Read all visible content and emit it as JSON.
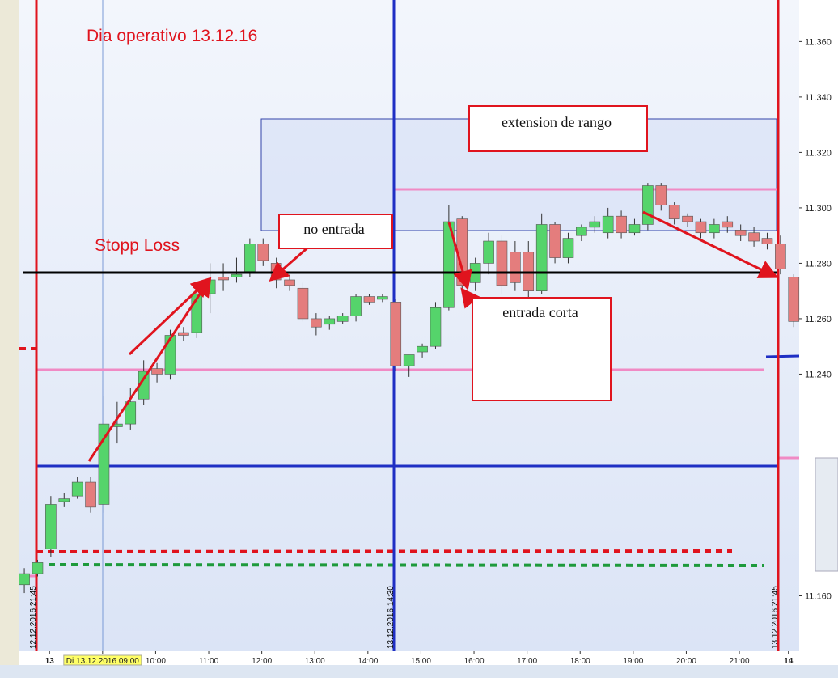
{
  "chart_data": {
    "type": "candlestick",
    "up_color": "#55d46b",
    "down_color": "#e47d7d",
    "categories": [
      null,
      null,
      null,
      null,
      null,
      null,
      null,
      null,
      null,
      null,
      null,
      null,
      null,
      null,
      null,
      null,
      null,
      null,
      null,
      null,
      null,
      null,
      null,
      null,
      null,
      null,
      null,
      null,
      null,
      null,
      null,
      null,
      null,
      null,
      null,
      null,
      null,
      null,
      null,
      null,
      null,
      null,
      null,
      null,
      null,
      null,
      null,
      null,
      null,
      null,
      null,
      null,
      null,
      null,
      null,
      null,
      null,
      null,
      null
    ],
    "open": [
      11.164,
      11.168,
      11.177,
      11.194,
      11.196,
      11.201,
      11.193,
      11.221,
      11.222,
      11.231,
      11.242,
      11.24,
      11.255,
      11.255,
      11.269,
      11.275,
      11.275,
      11.277,
      11.287,
      11.28,
      11.274,
      11.271,
      11.26,
      11.258,
      11.259,
      11.261,
      11.268,
      11.267,
      11.266,
      11.243,
      11.248,
      11.25,
      11.264,
      11.296,
      11.273,
      11.28,
      11.288,
      11.284,
      11.284,
      11.27,
      11.294,
      11.282,
      11.29,
      11.293,
      11.291,
      11.297,
      11.291,
      11.294,
      11.308,
      11.301,
      11.297,
      11.295,
      11.291,
      11.295,
      11.292,
      11.291,
      11.289,
      11.287,
      11.275
    ],
    "high": [
      11.17,
      11.173,
      11.196,
      11.197,
      11.203,
      11.203,
      11.232,
      11.23,
      11.235,
      11.245,
      11.244,
      11.256,
      11.257,
      11.272,
      11.28,
      11.28,
      11.282,
      11.289,
      11.289,
      11.282,
      11.276,
      11.273,
      11.262,
      11.261,
      11.262,
      11.269,
      11.269,
      11.269,
      11.267,
      11.247,
      11.251,
      11.266,
      11.301,
      11.297,
      11.282,
      11.291,
      11.29,
      11.288,
      11.288,
      11.298,
      11.295,
      11.291,
      11.294,
      11.297,
      11.3,
      11.299,
      11.296,
      11.309,
      11.309,
      11.302,
      11.298,
      11.296,
      11.296,
      11.297,
      11.294,
      11.293,
      11.291,
      11.29,
      11.276
    ],
    "low": [
      11.161,
      11.167,
      11.174,
      11.192,
      11.195,
      11.19,
      11.19,
      11.215,
      11.22,
      11.229,
      11.237,
      11.238,
      11.252,
      11.253,
      11.262,
      11.27,
      11.273,
      11.275,
      11.279,
      11.271,
      11.27,
      11.259,
      11.254,
      11.256,
      11.258,
      11.259,
      11.265,
      11.266,
      11.241,
      11.239,
      11.246,
      11.249,
      11.263,
      11.27,
      11.27,
      11.276,
      11.269,
      11.27,
      11.267,
      11.269,
      11.28,
      11.28,
      11.288,
      11.291,
      11.289,
      11.289,
      11.29,
      11.292,
      11.299,
      11.294,
      11.293,
      11.289,
      11.289,
      11.291,
      11.288,
      11.286,
      11.285,
      11.276,
      11.257
    ],
    "close": [
      11.168,
      11.172,
      11.193,
      11.195,
      11.201,
      11.192,
      11.222,
      11.222,
      11.23,
      11.241,
      11.24,
      11.254,
      11.254,
      11.269,
      11.274,
      11.274,
      11.276,
      11.287,
      11.281,
      11.274,
      11.272,
      11.26,
      11.257,
      11.26,
      11.261,
      11.268,
      11.266,
      11.268,
      11.243,
      11.247,
      11.25,
      11.264,
      11.295,
      11.272,
      11.28,
      11.288,
      11.272,
      11.273,
      11.27,
      11.294,
      11.282,
      11.289,
      11.293,
      11.295,
      11.297,
      11.291,
      11.294,
      11.308,
      11.301,
      11.296,
      11.295,
      11.291,
      11.294,
      11.293,
      11.29,
      11.288,
      11.287,
      11.278,
      11.259
    ],
    "xlim": [
      -0.37,
      58.41
    ],
    "xticks": [
      {
        "value": 1.9,
        "label": "13"
      },
      {
        "value": 5.9,
        "label": "Di 13.12.2016 09:00"
      },
      {
        "value": 9.9,
        "label": "10:00"
      },
      {
        "value": 13.9,
        "label": "11:00"
      },
      {
        "value": 17.9,
        "label": "12:00"
      },
      {
        "value": 21.9,
        "label": "13:00"
      },
      {
        "value": 25.9,
        "label": "14:00"
      },
      {
        "value": 29.9,
        "label": "15:00"
      },
      {
        "value": 33.9,
        "label": "16:00"
      },
      {
        "value": 37.9,
        "label": "17:00"
      },
      {
        "value": 41.9,
        "label": "18:00"
      },
      {
        "value": 45.9,
        "label": "19:00"
      },
      {
        "value": 49.9,
        "label": "20:00"
      },
      {
        "value": 53.9,
        "label": "21:00"
      },
      {
        "value": 57.6,
        "label": "14"
      }
    ],
    "ylim": [
      11.14,
      11.375
    ],
    "yticks": [
      {
        "value": 11.16,
        "label": "11.160"
      },
      {
        "value": 11.24,
        "label": "11.240"
      },
      {
        "value": 11.26,
        "label": "11.260"
      },
      {
        "value": 11.28,
        "label": "11.280"
      },
      {
        "value": 11.3,
        "label": "11.300"
      },
      {
        "value": 11.32,
        "label": "11.320"
      },
      {
        "value": 11.34,
        "label": "11.340"
      },
      {
        "value": 11.36,
        "label": "11.360"
      }
    ],
    "annotations": [
      "Dia operativo 13.12.16",
      "Stopp Loss",
      "no entrada",
      "extension de rango",
      "entrada corta"
    ],
    "date_labels": [
      "12.12.2016 21:45",
      "13.12.2016 14:30",
      "13.12.2016 21:45"
    ]
  }
}
